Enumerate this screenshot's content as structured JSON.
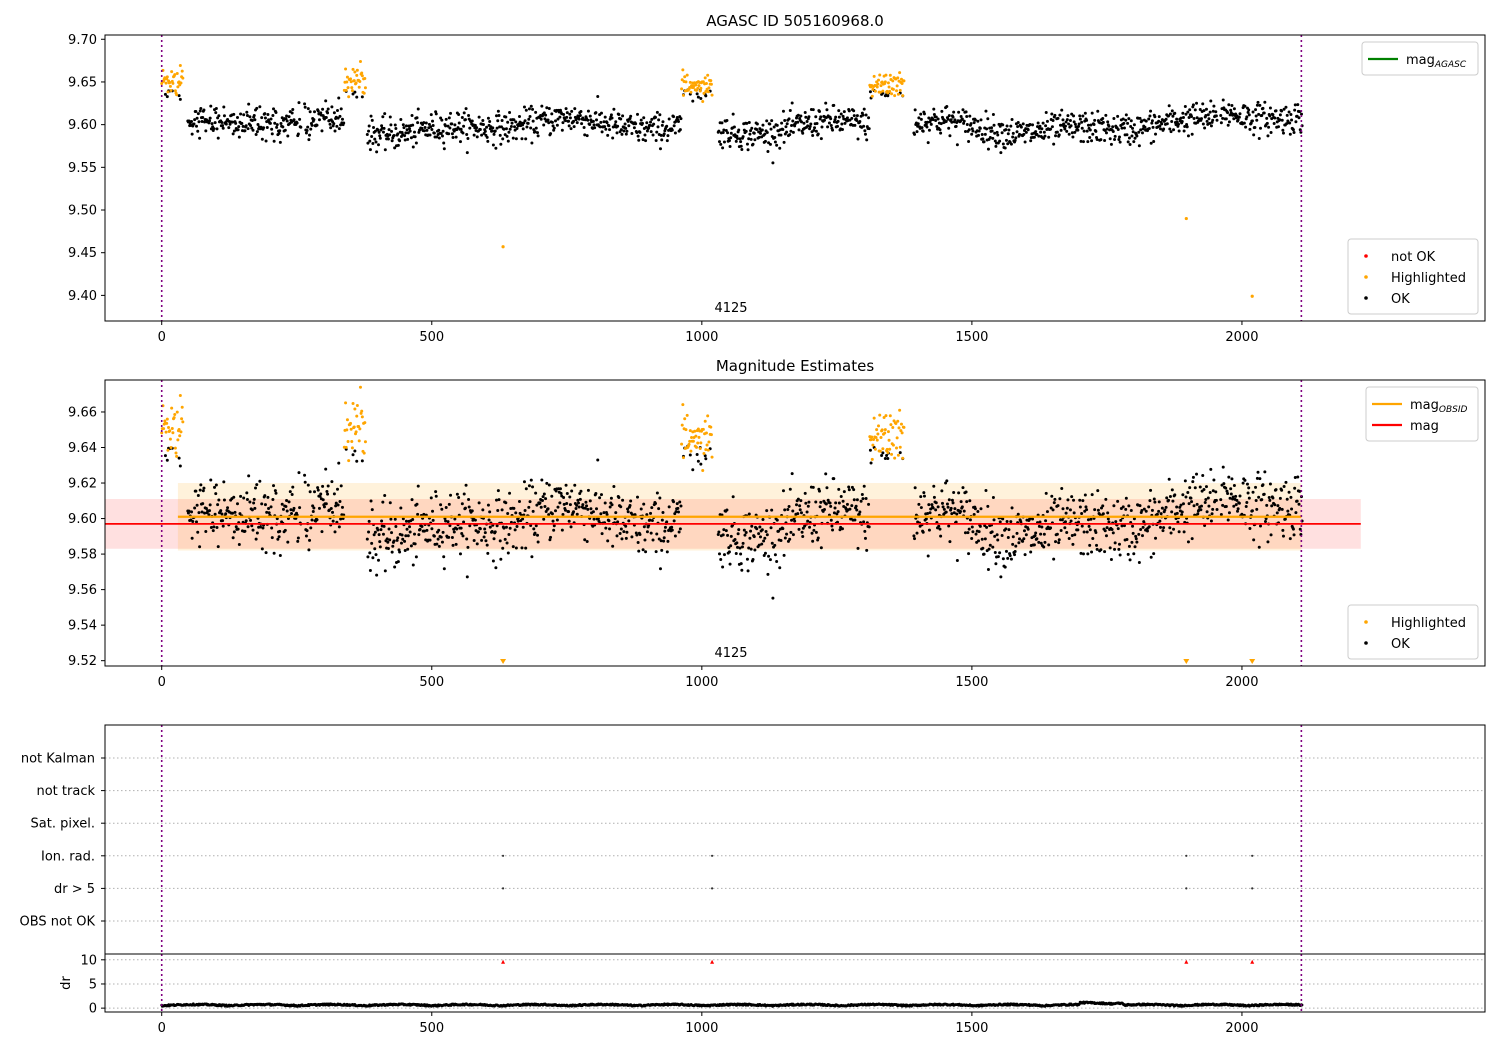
{
  "chart_data": [
    {
      "type": "scatter",
      "title": "AGASC ID 505160968.0",
      "xlim": [
        -105,
        2450
      ],
      "ylim": [
        9.37,
        9.705
      ],
      "xticks": [
        0,
        500,
        1000,
        1500,
        2000
      ],
      "yticks": [
        9.4,
        9.45,
        9.5,
        9.55,
        9.6,
        9.65,
        9.7
      ],
      "ytick_decimals": 2,
      "vlines": [
        0,
        2110
      ],
      "obsid_label": {
        "text": "4125",
        "x": 1055
      },
      "series": [
        {
          "name": "not OK",
          "color": "#ff0000",
          "x": [],
          "y": []
        },
        {
          "name": "Highlighted",
          "color": "#ffa500",
          "x": [
            632,
            1897,
            2019
          ],
          "y": [
            9.457,
            9.49,
            9.399
          ]
        },
        {
          "name": "OK",
          "color": "#000000",
          "x": [],
          "y": []
        }
      ],
      "lines": [
        {
          "name": "mag",
          "sub": "AGASC",
          "color": "#008000"
        }
      ],
      "legends": [
        {
          "position": "top-right",
          "entries": [
            {
              "label": "mag",
              "sub": "AGASC",
              "color": "#008000",
              "kind": "line"
            }
          ]
        },
        {
          "position": "bottom-right",
          "entries": [
            {
              "label": "not OK",
              "color": "#ff0000",
              "kind": "dot"
            },
            {
              "label": "Highlighted",
              "color": "#ffa500",
              "kind": "dot"
            },
            {
              "label": "OK",
              "color": "#000000",
              "kind": "dot"
            }
          ]
        }
      ]
    },
    {
      "type": "scatter",
      "title": "Magnitude Estimates",
      "xlim": [
        -105,
        2450
      ],
      "ylim": [
        9.517,
        9.678
      ],
      "xticks": [
        0,
        500,
        1000,
        1500,
        2000
      ],
      "yticks": [
        9.52,
        9.54,
        9.56,
        9.58,
        9.6,
        9.62,
        9.64,
        9.66
      ],
      "ytick_decimals": 2,
      "vlines": [
        0,
        2110
      ],
      "obsid_label": {
        "text": "4125",
        "x": 1055
      },
      "bands": [
        {
          "x": [
            -105,
            2220
          ],
          "y": [
            9.583,
            9.611
          ],
          "color": "#ff0000",
          "opacity": 0.12
        },
        {
          "x": [
            30,
            2110
          ],
          "y": [
            9.582,
            9.62
          ],
          "color": "#ffa500",
          "opacity": 0.14
        }
      ],
      "hlines": [
        {
          "name": "mag",
          "sub": "OBSID",
          "y": 9.601,
          "x": [
            30,
            2110
          ],
          "color": "#ffa500",
          "width": 2.2
        },
        {
          "name": "mag",
          "y": 9.597,
          "x": [
            -105,
            2220
          ],
          "color": "#ff0000",
          "width": 1.8
        }
      ],
      "series": [
        {
          "name": "Highlighted",
          "color": "#ffa500",
          "x_off": [
            632,
            1897,
            2019
          ]
        },
        {
          "name": "OK",
          "color": "#000000",
          "x": [],
          "y": []
        }
      ],
      "legends": [
        {
          "position": "top-right",
          "entries": [
            {
              "label": "mag",
              "sub": "OBSID",
              "color": "#ffa500",
              "kind": "line"
            },
            {
              "label": "mag",
              "color": "#ff0000",
              "kind": "line"
            }
          ]
        },
        {
          "position": "bottom-right",
          "entries": [
            {
              "label": "Highlighted",
              "color": "#ffa500",
              "kind": "dot"
            },
            {
              "label": "OK",
              "color": "#000000",
              "kind": "dot"
            }
          ]
        }
      ]
    },
    {
      "type": "scatter",
      "title": "",
      "xlim": [
        -105,
        2450
      ],
      "categories": [
        "not Kalman",
        "not track",
        "Sat. pixel.",
        "Ion. rad.",
        "dr > 5",
        "OBS not OK"
      ],
      "flags": [
        {
          "category": "Ion. rad.",
          "x": [
            632,
            1019,
            1897,
            2019
          ]
        },
        {
          "category": "dr > 5",
          "x": [
            632,
            1019,
            1897,
            2019
          ]
        }
      ],
      "vlines": [
        0,
        2110
      ]
    },
    {
      "type": "scatter",
      "title": "",
      "xlim": [
        -105,
        2450
      ],
      "ylim": [
        -0.8,
        11.2
      ],
      "xticks": [
        0,
        500,
        1000,
        1500,
        2000
      ],
      "yticks": [
        0,
        5,
        10
      ],
      "ylabel": "dr",
      "vlines": [
        0,
        2110
      ],
      "outliers": {
        "color": "#ff0000",
        "x": [
          632,
          1019,
          1897,
          2019
        ],
        "y": [
          10,
          10,
          10,
          10
        ]
      }
    }
  ]
}
